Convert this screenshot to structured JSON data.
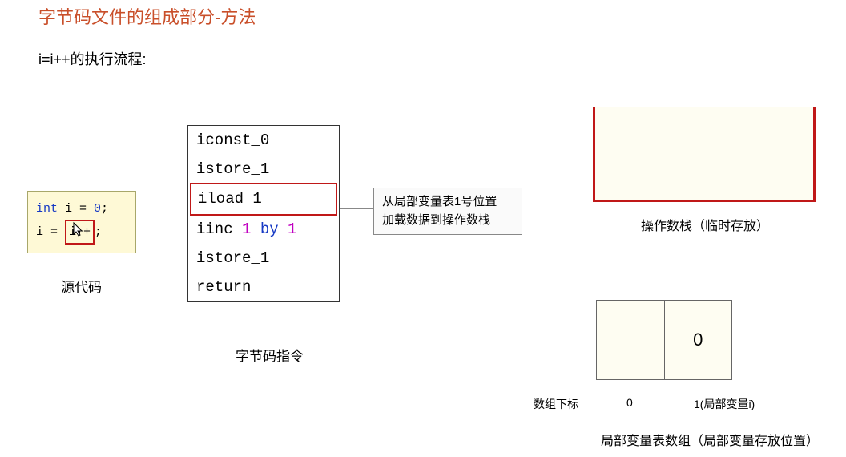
{
  "title": {
    "text": "字节码文件的组成部分-方法",
    "color": "#c94f2a",
    "fontsize": 22
  },
  "subtitle": {
    "text": "i=i++的执行流程:",
    "fontsize": 18
  },
  "source_code": {
    "label": "源代码",
    "bg_color": "#fef9d6",
    "border_color": "#a8a76a",
    "highlight_color": "#c01818",
    "line1_kw": "int",
    "line1_var": " i = ",
    "line1_num": "0",
    "line1_end": ";",
    "line2_pre": "i = ",
    "line2_hl": "i++",
    "line2_end": ";"
  },
  "bytecode": {
    "label": "字节码指令",
    "highlight_color": "#c01818",
    "lines": [
      {
        "text": "iconst_0",
        "hl": false
      },
      {
        "text": "istore_1",
        "hl": false
      },
      {
        "text": "iload_1",
        "hl": true
      },
      {
        "op": "iinc",
        "arg1": "1",
        "kw": "by",
        "arg2": "1",
        "hl": false,
        "compound": true
      },
      {
        "text": "istore_1",
        "hl": false
      },
      {
        "text": "return",
        "hl": false
      }
    ]
  },
  "annotation": {
    "line1": "从局部变量表1号位置",
    "line2": "加载数据到操作数栈"
  },
  "operand_stack": {
    "label": "操作数栈（临时存放）",
    "border_color": "#c01818",
    "bg_color": "#fefdf2"
  },
  "local_var_table": {
    "index_label": "数组下标",
    "idx0": "0",
    "idx1": "1(局部变量i)",
    "cell0": "",
    "cell1": "0",
    "label": "局部变量表数组（局部变量存放位置）",
    "bg_color": "#fefdf2"
  },
  "colors": {
    "keyword": "#1639c4",
    "number_magenta": "#c000c0"
  }
}
